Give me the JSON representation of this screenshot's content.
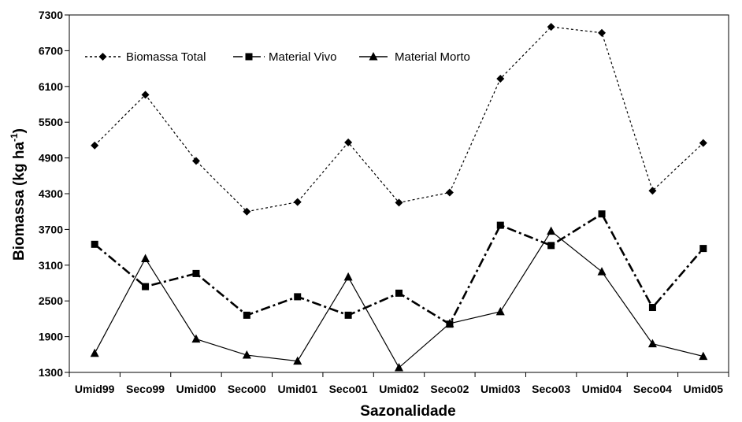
{
  "chart_data": {
    "type": "line",
    "title": "",
    "xlabel": "Sazonalidade",
    "ylabel": "Biomassa (kg ha",
    "ylabel_sup": "-1",
    "ylabel_close": ")",
    "ylim": [
      1300,
      7300
    ],
    "yticks": [
      1300,
      1900,
      2500,
      3100,
      3700,
      4300,
      4900,
      5500,
      6100,
      6700,
      7300
    ],
    "categories": [
      "Umid99",
      "Seco99",
      "Umid00",
      "Seco00",
      "Umid01",
      "Seco01",
      "Umid02",
      "Seco02",
      "Umid03",
      "Seco03",
      "Umid04",
      "Seco04",
      "Umid05"
    ],
    "grid": false,
    "legend_position": "top-left",
    "series": [
      {
        "name": "Biomassa Total",
        "marker": "diamond",
        "line": "dotted",
        "color": "#000000",
        "values": [
          5110,
          5960,
          4850,
          4000,
          4160,
          5160,
          4150,
          4320,
          6230,
          7100,
          7000,
          4350,
          5150
        ]
      },
      {
        "name": "Material Vivo",
        "marker": "square",
        "line": "dashdot",
        "color": "#000000",
        "values": [
          3450,
          2740,
          2960,
          2260,
          2570,
          2260,
          2630,
          2110,
          3770,
          3430,
          3960,
          2390,
          3380
        ]
      },
      {
        "name": "Material Morto",
        "marker": "triangle",
        "line": "solid",
        "color": "#000000",
        "values": [
          1620,
          3210,
          1860,
          1590,
          1490,
          2900,
          1380,
          2120,
          2320,
          3670,
          2990,
          1780,
          1570
        ]
      }
    ]
  }
}
